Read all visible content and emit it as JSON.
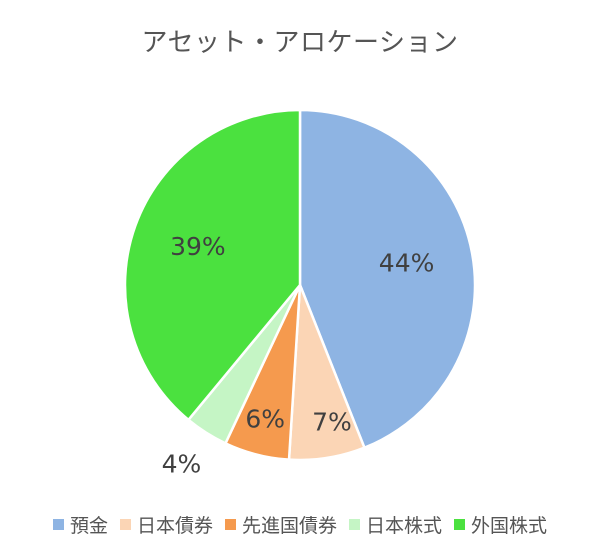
{
  "chart_data": {
    "type": "pie",
    "title": "アセット・アロケーション",
    "legend_position": "bottom",
    "slices": [
      {
        "label": "預金",
        "value": 44,
        "display": "44%",
        "color": "#8EB4E3"
      },
      {
        "label": "日本債券",
        "value": 7,
        "display": "7%",
        "color": "#FBD5B5"
      },
      {
        "label": "先進国債券",
        "value": 6,
        "display": "6%",
        "color": "#F59A4E"
      },
      {
        "label": "日本株式",
        "value": 4,
        "display": "4%",
        "color": "#C5F5C5"
      },
      {
        "label": "外国株式",
        "value": 39,
        "display": "39%",
        "color": "#4BE13F"
      }
    ]
  }
}
